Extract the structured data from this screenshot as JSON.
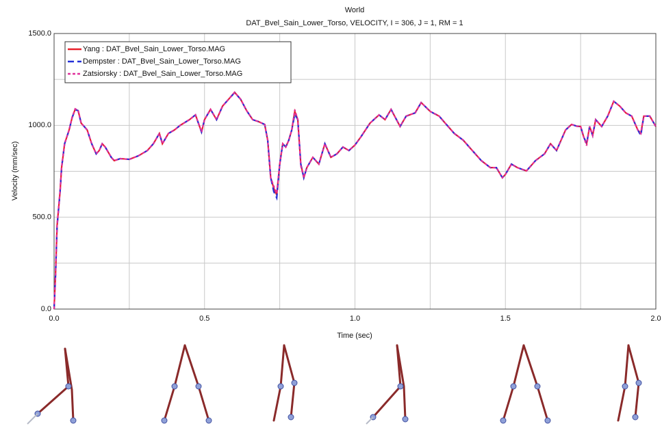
{
  "chart_data": {
    "type": "line",
    "title": "World",
    "subtitle": "DAT_Bvel_Sain_Lower_Torso, VELOCITY, I = 306, J = 1, RM = 1",
    "x_label": "Time (sec)",
    "y_label": "Velocity (mm/sec)",
    "xlim": [
      0,
      2.0
    ],
    "ylim": [
      0,
      1500
    ],
    "xticks": [
      {
        "value": 0,
        "label": "0.0"
      },
      {
        "value": 0.5,
        "label": "0.5"
      },
      {
        "value": 1.0,
        "label": "1.0"
      },
      {
        "value": 1.5,
        "label": "1.5"
      },
      {
        "value": 2.0,
        "label": "2.0"
      }
    ],
    "yticks": [
      {
        "value": 0,
        "label": "0.0"
      },
      {
        "value": 500,
        "label": "500.0"
      },
      {
        "value": 1000,
        "label": "1000.0"
      },
      {
        "value": 1500,
        "label": "1500.0"
      }
    ],
    "x_minor_grid": [
      0.25,
      0.75,
      1.25,
      1.75
    ],
    "y_minor_grid": [
      250,
      750,
      1250
    ],
    "grid": true,
    "legend": "top-left",
    "x": [
      0,
      0.005,
      0.01,
      0.02,
      0.025,
      0.035,
      0.05,
      0.06,
      0.07,
      0.08,
      0.09,
      0.1,
      0.11,
      0.125,
      0.14,
      0.15,
      0.16,
      0.17,
      0.19,
      0.2,
      0.22,
      0.25,
      0.28,
      0.31,
      0.33,
      0.35,
      0.36,
      0.38,
      0.4,
      0.42,
      0.45,
      0.47,
      0.49,
      0.5,
      0.52,
      0.54,
      0.56,
      0.58,
      0.6,
      0.62,
      0.64,
      0.66,
      0.68,
      0.7,
      0.71,
      0.72,
      0.73,
      0.74,
      0.75,
      0.76,
      0.77,
      0.78,
      0.79,
      0.8,
      0.81,
      0.82,
      0.83,
      0.84,
      0.86,
      0.88,
      0.9,
      0.92,
      0.94,
      0.96,
      0.98,
      1.0,
      1.02,
      1.05,
      1.08,
      1.1,
      1.12,
      1.15,
      1.17,
      1.2,
      1.22,
      1.25,
      1.28,
      1.3,
      1.33,
      1.36,
      1.39,
      1.42,
      1.45,
      1.47,
      1.49,
      1.5,
      1.52,
      1.54,
      1.57,
      1.6,
      1.63,
      1.65,
      1.67,
      1.7,
      1.72,
      1.74,
      1.75,
      1.76,
      1.77,
      1.78,
      1.79,
      1.8,
      1.82,
      1.84,
      1.86,
      1.88,
      1.9,
      1.92,
      1.94,
      1.95,
      1.96,
      1.98,
      2.0
    ],
    "series": [
      {
        "name": "Yang : DAT_Bvel_Sain_Lower_Torso.MAG",
        "color": "#e8202a",
        "dash": "solid",
        "values": [
          0,
          195,
          454,
          640,
          770,
          900,
          975,
          1042,
          1087,
          1080,
          1012,
          994,
          975,
          900,
          845,
          863,
          900,
          882,
          826,
          808,
          819,
          815,
          834,
          863,
          900,
          956,
          900,
          956,
          975,
          1001,
          1031,
          1057,
          964,
          1031,
          1087,
          1031,
          1105,
          1142,
          1180,
          1142,
          1080,
          1031,
          1020,
          1005,
          919,
          715,
          659,
          621,
          789,
          900,
          882,
          919,
          975,
          1076,
          1031,
          789,
          715,
          770,
          826,
          789,
          900,
          826,
          845,
          882,
          863,
          893,
          938,
          1012,
          1057,
          1031,
          1087,
          994,
          1050,
          1068,
          1124,
          1076,
          1050,
          1012,
          956,
          919,
          863,
          808,
          770,
          770,
          715,
          733,
          789,
          770,
          752,
          808,
          845,
          900,
          863,
          975,
          1005,
          994,
          994,
          938,
          900,
          994,
          945,
          1031,
          994,
          1050,
          1131,
          1105,
          1068,
          1050,
          975,
          956,
          1050,
          1050,
          994
        ]
      },
      {
        "name": "Dempster : DAT_Bvel_Sain_Lower_Torso.MAG",
        "color": "#2330d8",
        "dash": "dashed",
        "values": [
          0,
          190,
          450,
          640,
          770,
          900,
          975,
          1042,
          1085,
          1080,
          1012,
          994,
          975,
          900,
          845,
          863,
          900,
          882,
          826,
          808,
          819,
          815,
          834,
          863,
          900,
          956,
          900,
          956,
          975,
          1001,
          1031,
          1057,
          964,
          1031,
          1087,
          1031,
          1105,
          1142,
          1178,
          1142,
          1080,
          1031,
          1020,
          1005,
          919,
          715,
          640,
          605,
          789,
          900,
          882,
          919,
          975,
          1060,
          1031,
          789,
          715,
          770,
          826,
          789,
          900,
          826,
          845,
          882,
          863,
          893,
          938,
          1012,
          1057,
          1031,
          1087,
          994,
          1050,
          1068,
          1124,
          1076,
          1050,
          1012,
          956,
          919,
          863,
          808,
          770,
          770,
          715,
          733,
          789,
          770,
          752,
          808,
          845,
          900,
          863,
          975,
          1005,
          994,
          994,
          938,
          900,
          994,
          945,
          1031,
          994,
          1050,
          1131,
          1105,
          1068,
          1050,
          975,
          945,
          1050,
          1050,
          994
        ]
      },
      {
        "name": "Zatsiorsky : DAT_Bvel_Sain_Lower_Torso.MAG",
        "color": "#e0309a",
        "dash": "dotted",
        "values": [
          0,
          200,
          460,
          645,
          772,
          902,
          975,
          1045,
          1090,
          1082,
          1012,
          994,
          975,
          900,
          845,
          863,
          900,
          882,
          826,
          808,
          819,
          815,
          834,
          863,
          900,
          956,
          900,
          956,
          975,
          1001,
          1031,
          1057,
          964,
          1031,
          1087,
          1031,
          1105,
          1142,
          1180,
          1142,
          1080,
          1031,
          1020,
          1005,
          919,
          715,
          670,
          630,
          789,
          900,
          882,
          919,
          975,
          1085,
          1031,
          780,
          715,
          770,
          826,
          789,
          900,
          826,
          845,
          882,
          863,
          893,
          938,
          1012,
          1057,
          1031,
          1087,
          994,
          1050,
          1068,
          1124,
          1076,
          1050,
          1012,
          956,
          919,
          863,
          808,
          770,
          770,
          715,
          733,
          789,
          770,
          752,
          808,
          845,
          900,
          863,
          975,
          1005,
          994,
          994,
          938,
          890,
          994,
          945,
          1031,
          994,
          1050,
          1131,
          1105,
          1068,
          1050,
          975,
          956,
          1050,
          1050,
          994
        ]
      }
    ]
  }
}
